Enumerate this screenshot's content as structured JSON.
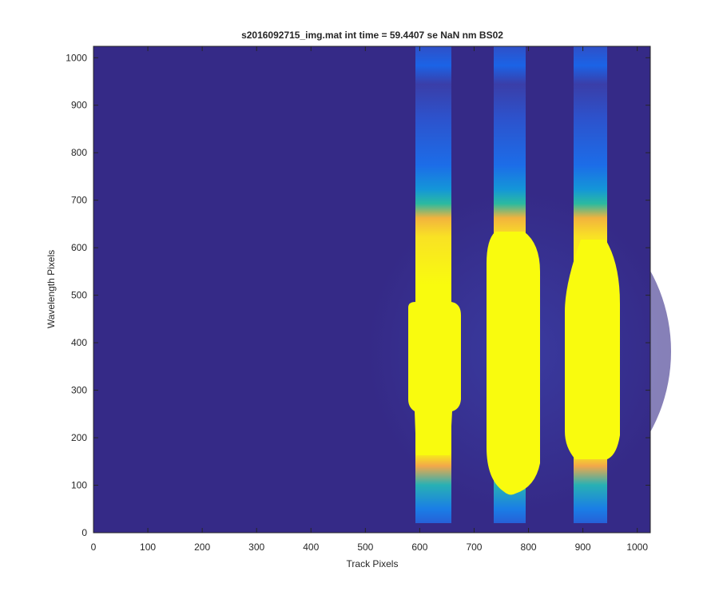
{
  "chart_data": {
    "type": "image",
    "title": "s2016092715_img.mat int time = 59.4407 se  NaN nm BS02",
    "x_label": "Track Pixels",
    "y_label": "Wavelength Pixels",
    "xlim": [
      0,
      1024
    ],
    "ylim": [
      0,
      1024
    ],
    "xticks": [
      0,
      100,
      200,
      300,
      400,
      500,
      600,
      700,
      800,
      900,
      1000
    ],
    "yticks": [
      0,
      100,
      200,
      300,
      400,
      500,
      600,
      700,
      800,
      900,
      1000
    ]
  }
}
